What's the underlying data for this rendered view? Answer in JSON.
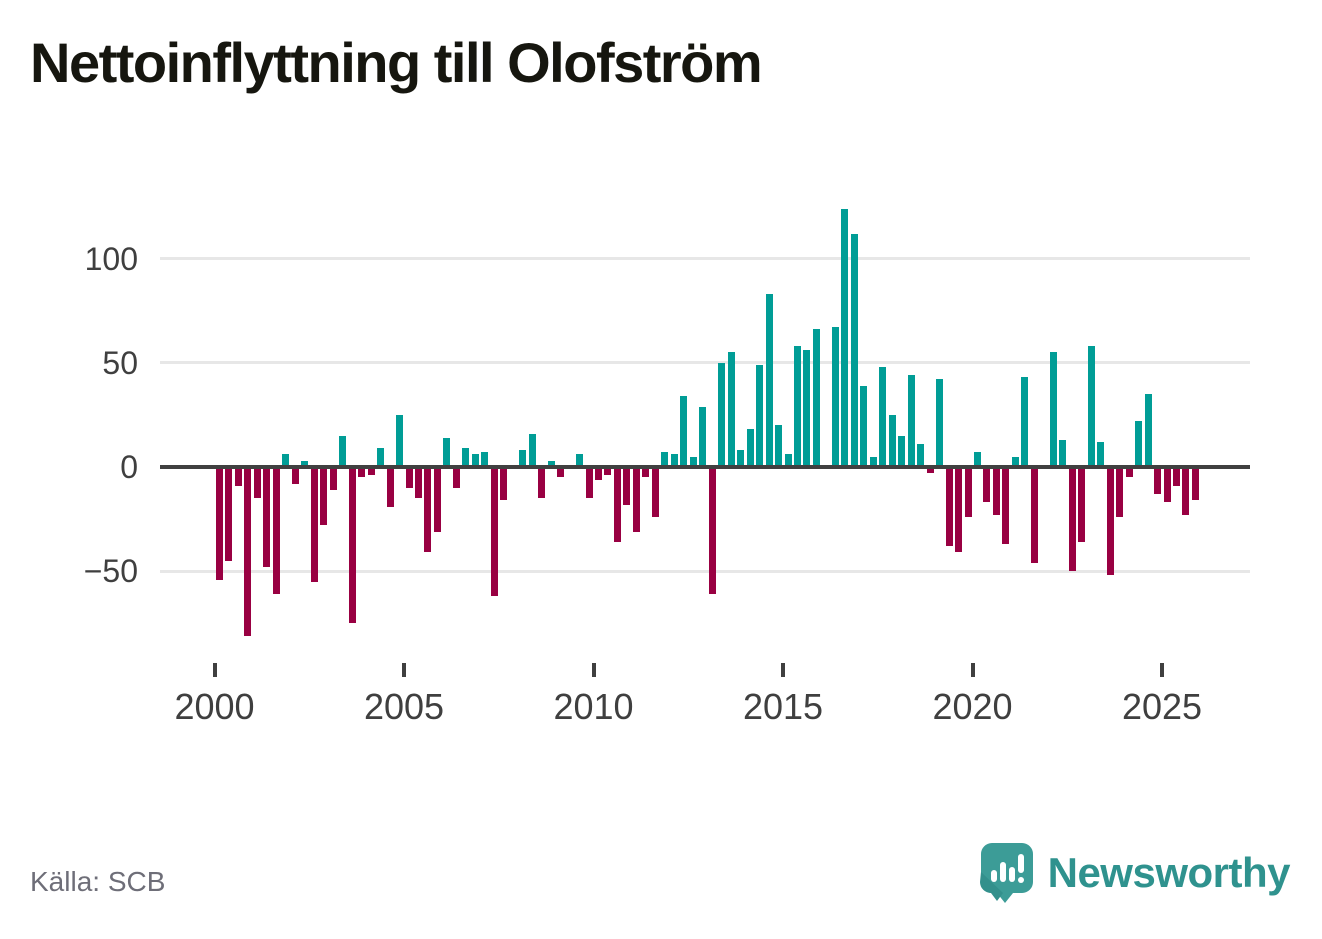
{
  "title": "Nettoinflyttning till Olofström",
  "source": {
    "label": "Källa: SCB"
  },
  "brand": {
    "name": "Newsworthy",
    "icon": "bar-chart-speech-bubble-icon",
    "color": "#2f928e",
    "badge_color": "#3c9c97"
  },
  "colors": {
    "positive": "#009d96",
    "negative": "#990042",
    "zero_axis": "#404040",
    "gridline": "#e7e7e7",
    "tick_label": "#3f3f3f",
    "title": "#16160f",
    "source_text": "#6e6e78"
  },
  "chart_data": {
    "type": "bar",
    "title": "Nettoinflyttning till Olofström",
    "xlabel": "",
    "ylabel": "",
    "frequency": "quarterly",
    "start": "2000Q1",
    "end": "2025Q4",
    "start_year": 2000,
    "values": [
      -54,
      -45,
      -9,
      -81,
      -15,
      -48,
      -61,
      6,
      -8,
      3,
      -55,
      -28,
      -11,
      15,
      -75,
      -5,
      -4,
      9,
      -19,
      25,
      -10,
      -15,
      -41,
      -31,
      14,
      -10,
      9,
      6,
      7,
      -62,
      -16,
      0,
      8,
      16,
      -15,
      3,
      -5,
      0,
      6,
      -15,
      -6,
      -4,
      -36,
      -18,
      -31,
      -5,
      -24,
      7,
      6,
      34,
      5,
      29,
      -61,
      50,
      55,
      8,
      18,
      49,
      83,
      20,
      6,
      58,
      56,
      66,
      0,
      67,
      124,
      112,
      39,
      5,
      48,
      25,
      15,
      44,
      11,
      -3,
      42,
      -38,
      -41,
      -24,
      7,
      -17,
      -23,
      -37,
      5,
      43,
      -46,
      0,
      55,
      13,
      -50,
      -36,
      58,
      12,
      -52,
      -24,
      -5,
      22,
      35,
      -13,
      -17,
      -9,
      -23,
      -16
    ],
    "yticks": [
      {
        "value": 100,
        "label": "100"
      },
      {
        "value": 50,
        "label": "50"
      },
      {
        "value": 0,
        "label": "0"
      },
      {
        "value": -50,
        "label": "−50"
      }
    ],
    "xticks": [
      {
        "year": 2000,
        "label": "2000"
      },
      {
        "year": 2005,
        "label": "2005"
      },
      {
        "year": 2010,
        "label": "2010"
      },
      {
        "year": 2015,
        "label": "2015"
      },
      {
        "year": 2020,
        "label": "2020"
      },
      {
        "year": 2025,
        "label": "2025"
      }
    ],
    "ylim": [
      -85,
      130
    ],
    "grid": true,
    "legend": false
  }
}
